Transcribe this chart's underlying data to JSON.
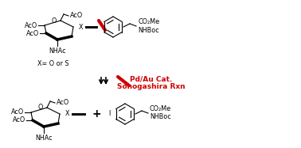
{
  "background_color": "#ffffff",
  "black": "#000000",
  "red": "#cc0000",
  "reaction_line1": "Pd/Au Cat.",
  "reaction_line2": "Sonogashira Rxn",
  "x_label": "X= O or S",
  "figsize": [
    3.78,
    1.87
  ],
  "dpi": 100
}
